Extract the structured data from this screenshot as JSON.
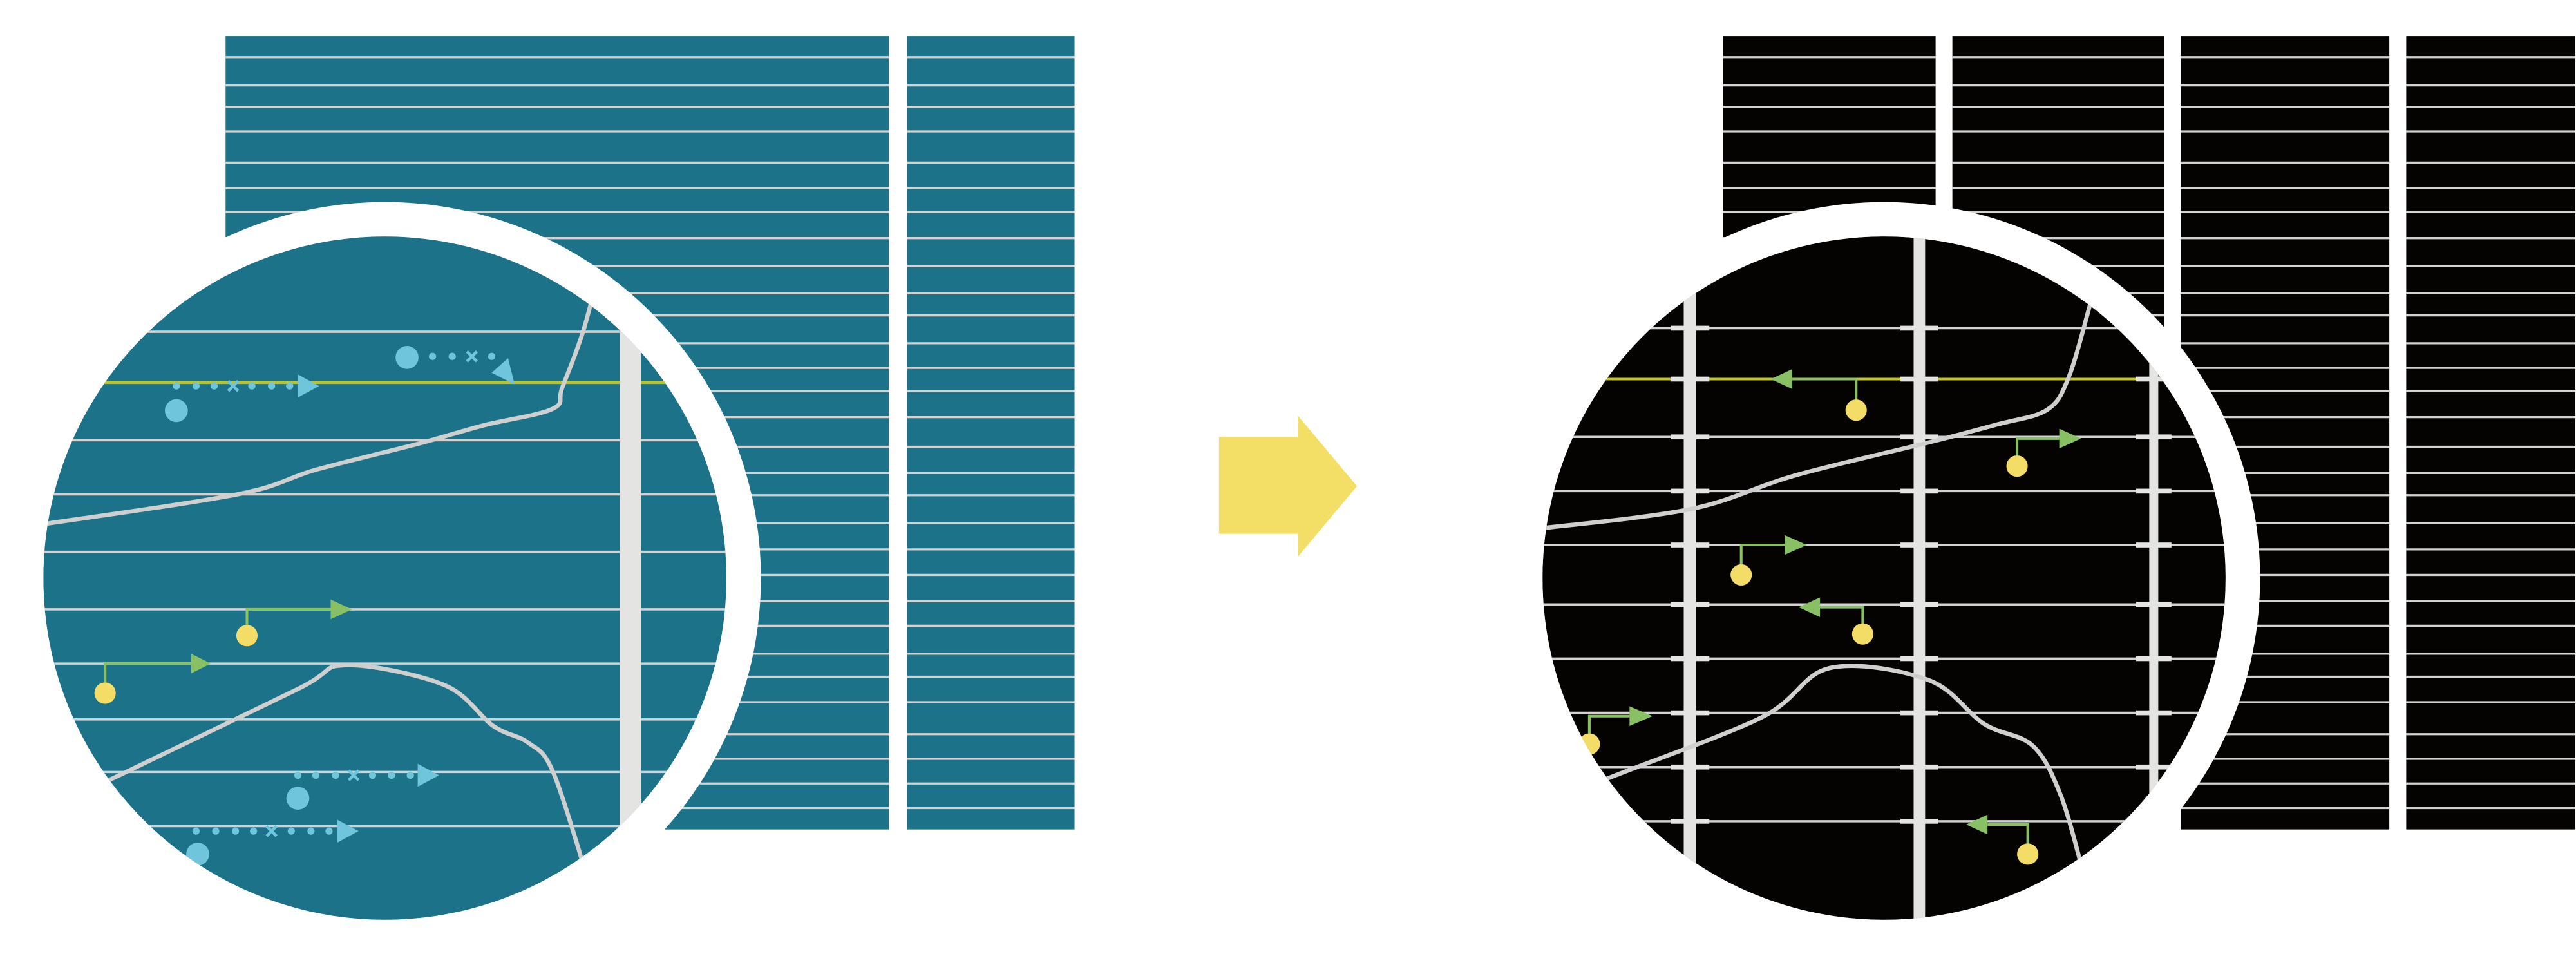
{
  "colors": {
    "background": "#ffffff",
    "before_panel": "#1b7289",
    "after_panel": "#050202",
    "grid_line": "#d2d2d2",
    "highlight_line": "#c3c41e",
    "vertical_bar": "#e4e4e2",
    "curve": "#cfcfcf",
    "blue_marker": "#6fc5dc",
    "green_arrow": "#88c063",
    "yellow_dot": "#f4dd66",
    "transition_arrow": "#f3df66",
    "lens_ring": "#ffffff"
  },
  "icons": {
    "transition": "right-arrow-icon",
    "magnifier": "magnifier-lens-icon"
  }
}
